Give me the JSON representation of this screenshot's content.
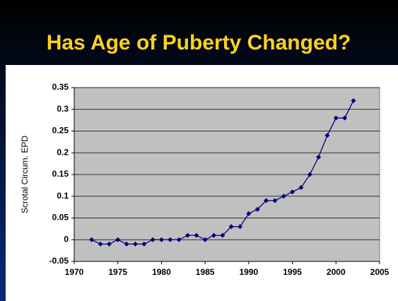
{
  "chart_data": {
    "type": "line",
    "title": "Has Age of Puberty Changed?",
    "ylabel": "Scrotal Circum. EPD",
    "x": [
      1972,
      1973,
      1974,
      1975,
      1976,
      1977,
      1978,
      1979,
      1980,
      1981,
      1982,
      1983,
      1984,
      1985,
      1986,
      1987,
      1988,
      1989,
      1990,
      1991,
      1992,
      1993,
      1994,
      1995,
      1996,
      1997,
      1998,
      1999,
      2000,
      2001,
      2002
    ],
    "series": [
      {
        "name": "Scrotal Circum. EPD",
        "color": "#000080",
        "values": [
          0,
          -0.01,
          -0.01,
          0,
          -0.01,
          -0.01,
          -0.01,
          0,
          0,
          0,
          0,
          0.01,
          0.01,
          0,
          0.01,
          0.01,
          0.03,
          0.03,
          0.06,
          0.07,
          0.09,
          0.09,
          0.1,
          0.11,
          0.12,
          0.15,
          0.19,
          0.24,
          0.28,
          0.28,
          0.32
        ]
      }
    ],
    "xlim": [
      1970,
      2005
    ],
    "xticks": [
      1970,
      1975,
      1980,
      1985,
      1990,
      1995,
      2000,
      2005
    ],
    "ylim": [
      -0.05,
      0.35
    ],
    "yticks": [
      -0.05,
      0,
      0.05,
      0.1,
      0.15,
      0.2,
      0.25,
      0.3,
      0.35
    ],
    "grid": true
  }
}
